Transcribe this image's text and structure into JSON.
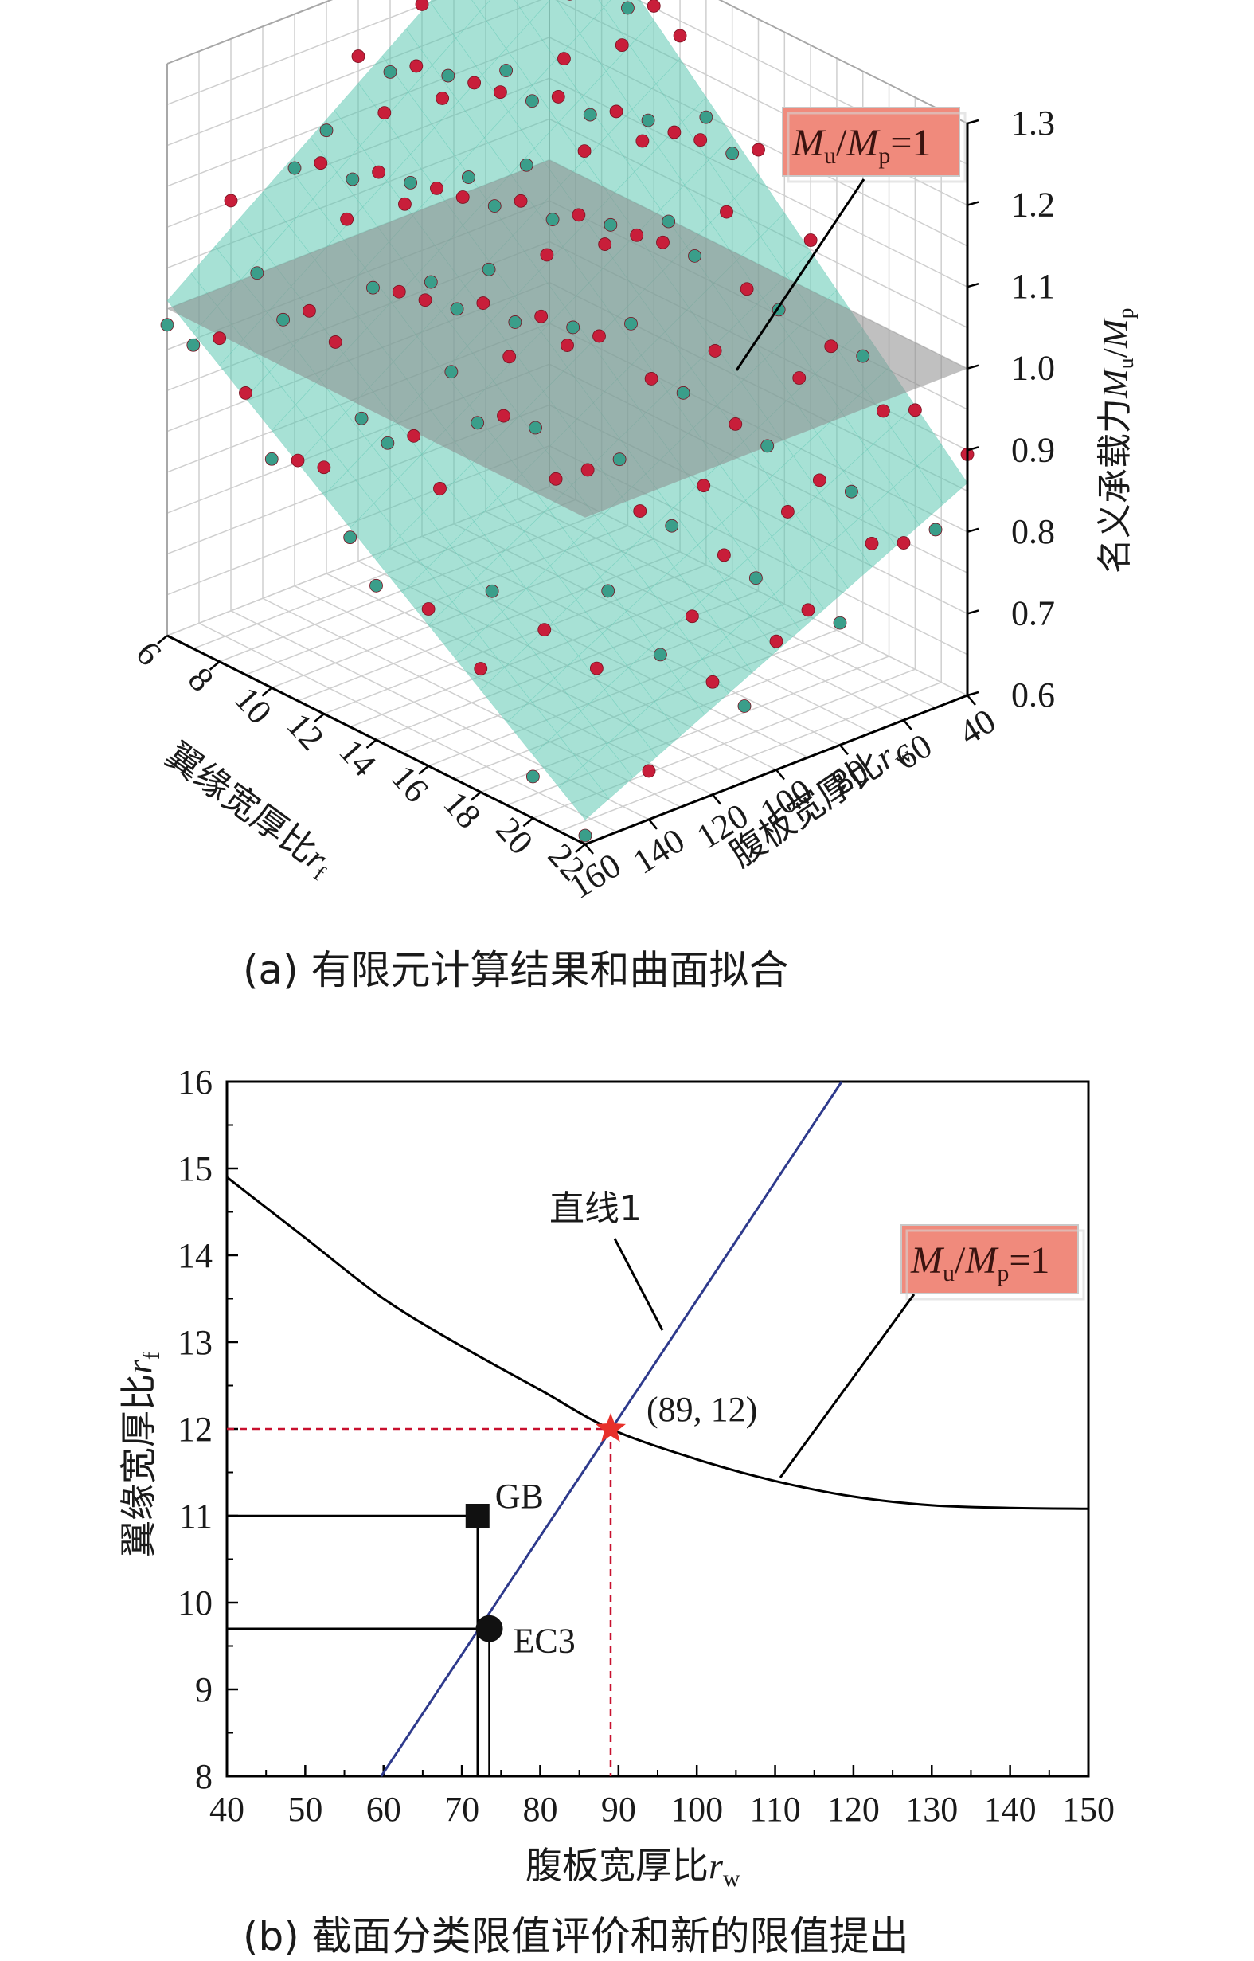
{
  "chart_data": [
    {
      "type": "scatter",
      "subtype": "3d-surface",
      "caption": "(a) 有限元计算结果和曲面拟合",
      "xlabel": "翼缘宽厚比",
      "xsymbol": "r",
      "xsub": "f",
      "ylabel": "腹板宽厚比",
      "ysymbol": "r",
      "ysub": "w",
      "zlabel": "名义承载力",
      "zsymbol_M": "M",
      "zsub_u": "u",
      "zsub_p": "p",
      "x_ticks": [
        "6",
        "8",
        "10",
        "12",
        "14",
        "16",
        "18",
        "20",
        "22"
      ],
      "y_ticks": [
        "40",
        "60",
        "80",
        "100",
        "120",
        "140",
        "160"
      ],
      "z_ticks": [
        "0.6",
        "0.7",
        "0.8",
        "0.9",
        "1.0",
        "1.1",
        "1.2",
        "1.3"
      ],
      "xlim": [
        6,
        22
      ],
      "ylim": [
        40,
        160
      ],
      "zlim": [
        0.6,
        1.3
      ],
      "plane_z": 1.0,
      "annotation": {
        "M": "M",
        "u": "u",
        "slash": "/",
        "M2": "M",
        "p": "p",
        "eq": "=1"
      },
      "colors": {
        "surface": "#5fc9b3",
        "plane": "#8c8c8c",
        "point_red": "#c81e3a",
        "point_teal": "#3a9e8a",
        "annotation_bg": "#f08a7c"
      }
    },
    {
      "type": "line",
      "caption": "(b) 截面分类限值评价和新的限值提出",
      "xlabel": "腹板宽厚比",
      "xsymbol": "r",
      "xsub": "w",
      "ylabel": "翼缘宽厚比",
      "ysymbol": "r",
      "ysub": "f",
      "xlim": [
        40,
        150
      ],
      "ylim": [
        8,
        16
      ],
      "x_ticks": [
        "40",
        "50",
        "60",
        "70",
        "80",
        "90",
        "100",
        "110",
        "120",
        "130",
        "140",
        "150"
      ],
      "y_ticks": [
        "8",
        "9",
        "10",
        "11",
        "12",
        "13",
        "14",
        "15",
        "16"
      ],
      "series": [
        {
          "name": "直线1",
          "x": [
            59.7,
            118.5
          ],
          "y": [
            8,
            16
          ]
        },
        {
          "x": [
            40,
            50,
            60,
            70,
            80,
            89,
            100,
            110,
            120,
            130,
            140,
            150
          ],
          "y": [
            14.9,
            14.2,
            13.5,
            12.95,
            12.45,
            12.0,
            11.65,
            11.4,
            11.22,
            11.12,
            11.09,
            11.08
          ]
        }
      ],
      "points": [
        {
          "label": "GB",
          "x": 72,
          "y": 11,
          "marker": "square"
        },
        {
          "label": "EC3",
          "x": 73.5,
          "y": 9.7,
          "marker": "circle"
        },
        {
          "label": "(89, 12)",
          "x": 89,
          "y": 12,
          "marker": "star"
        }
      ],
      "line_label": "直线1",
      "annotation": {
        "M": "M",
        "u": "u",
        "slash": "/",
        "M2": "M",
        "p": "p",
        "eq": "=1"
      },
      "colors": {
        "line": "#2e3a8c",
        "curve": "#000000",
        "star": "#e8302a",
        "dash": "#c8102e",
        "annotation_bg": "#f08a7c"
      }
    }
  ]
}
